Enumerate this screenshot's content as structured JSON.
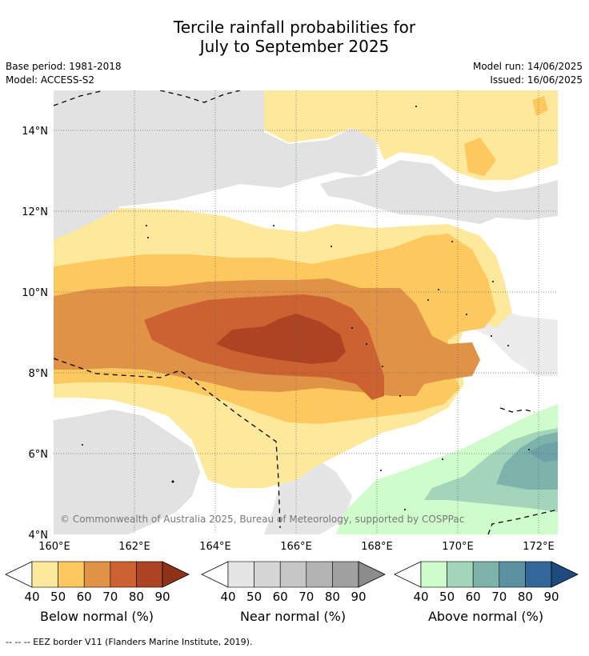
{
  "header": {
    "title_line1": "Tercile rainfall probabilities for",
    "title_line2": "July to September 2025",
    "base_period": "Base period: 1981-2018",
    "model": "Model: ACCESS-S2",
    "model_run": "Model run: 14/06/2025",
    "issued": "Issued: 16/06/2025"
  },
  "map": {
    "lat_labels": [
      "14°N",
      "12°N",
      "10°N",
      "8°N",
      "6°N",
      "4°N"
    ],
    "lon_labels": [
      "160°E",
      "162°E",
      "164°E",
      "166°E",
      "168°E",
      "170°E",
      "172°E"
    ],
    "copyright": "© Commonwealth of Australia 2025, Bureau of Meteorology, supported by COSPPac"
  },
  "colorbars": [
    {
      "name": "below",
      "label": "Below normal (%)",
      "ticks": [
        "40",
        "50",
        "60",
        "70",
        "80",
        "90"
      ],
      "colors": [
        "#fee89c",
        "#fdc95e",
        "#e09347",
        "#cc6131",
        "#ac4424",
        "#8e3317"
      ]
    },
    {
      "name": "near",
      "label": "Near normal (%)",
      "ticks": [
        "40",
        "50",
        "60",
        "70",
        "80",
        "90"
      ],
      "colors": [
        "#e5e5e5",
        "#d6d6d6",
        "#c6c6c6",
        "#b3b3b3",
        "#a0a0a0",
        "#8c8c8c"
      ]
    },
    {
      "name": "above",
      "label": "Above normal (%)",
      "ticks": [
        "40",
        "50",
        "60",
        "70",
        "80",
        "90"
      ],
      "colors": [
        "#cefccb",
        "#a3d5bb",
        "#7db3ab",
        "#5b92a0",
        "#336799",
        "#1d4b80"
      ]
    }
  ],
  "footer": {
    "legend_text": "--  --  -- EEZ border V11 (Flanders Marine Institute, 2019)."
  }
}
